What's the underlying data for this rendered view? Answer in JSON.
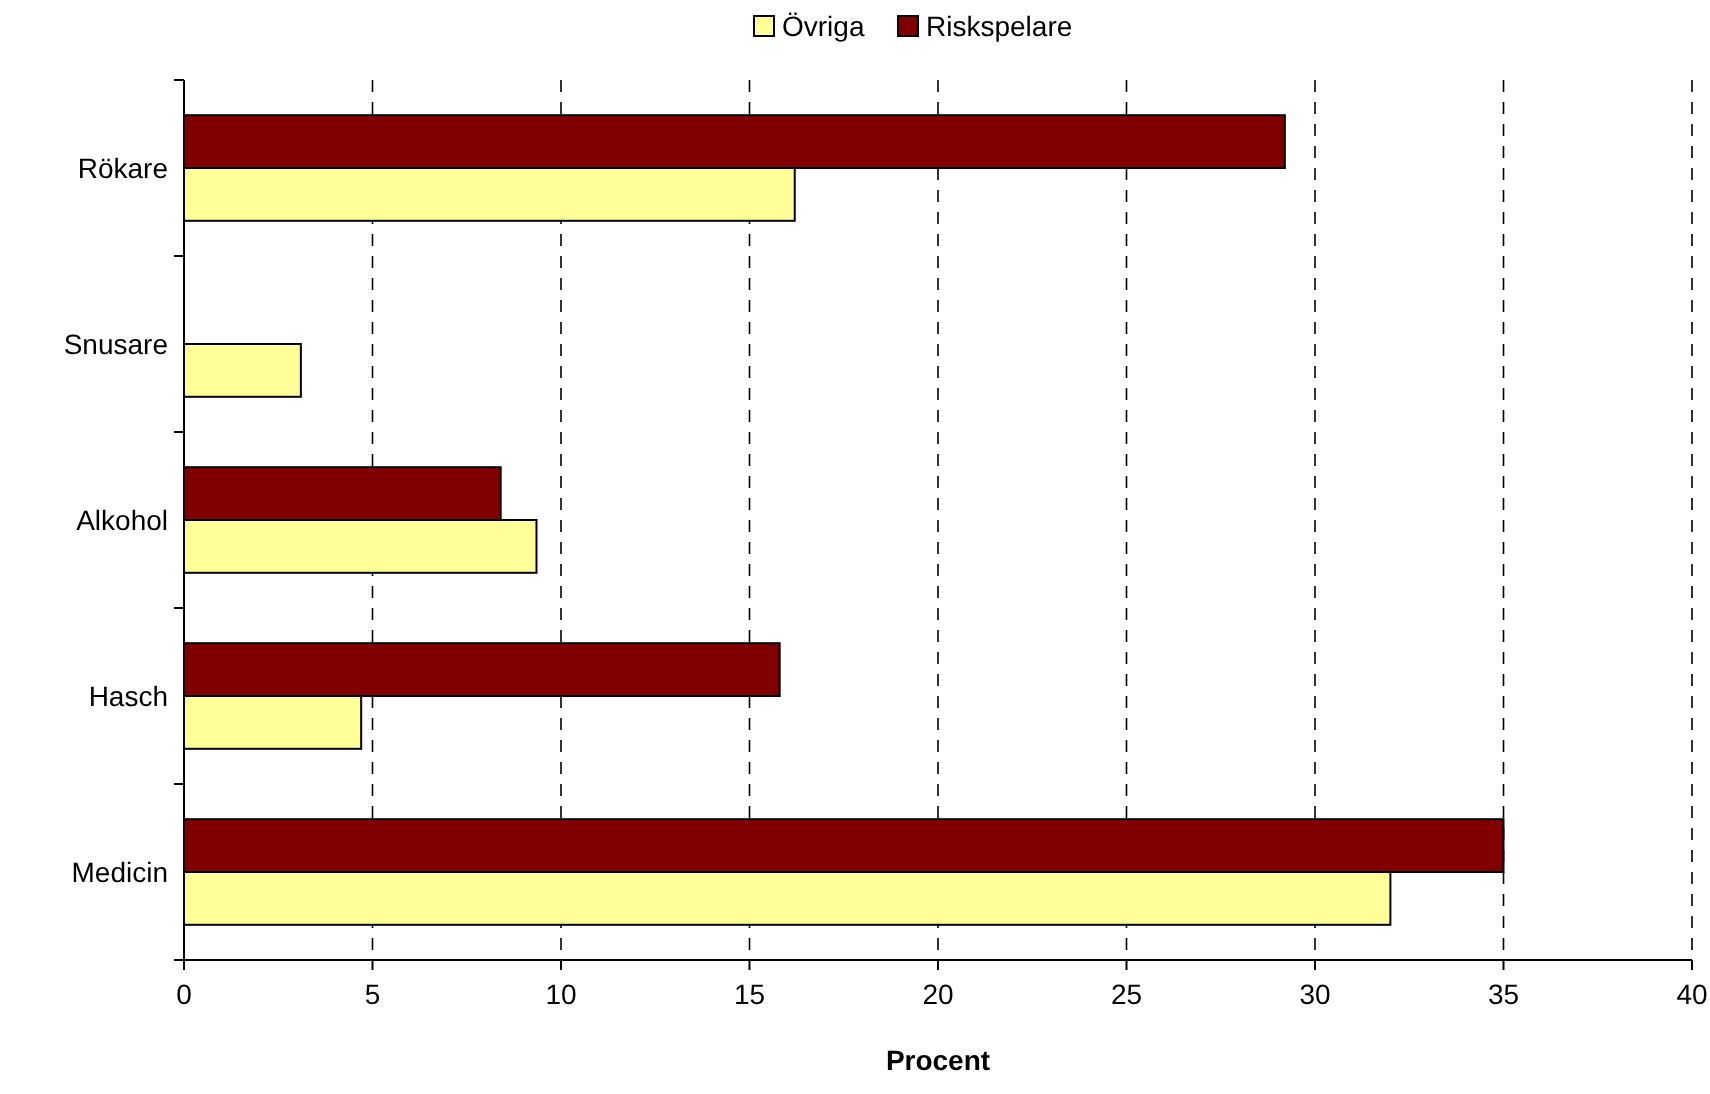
{
  "chart_data": {
    "type": "bar",
    "orientation": "horizontal",
    "xlabel": "Procent",
    "categories": [
      "Rökare",
      "Snusare",
      "Alkohol",
      "Hasch",
      "Medicin"
    ],
    "series": [
      {
        "name": "Övriga",
        "color": "#ffff99",
        "values": [
          16.2,
          3.1,
          9.35,
          4.7,
          32.0
        ]
      },
      {
        "name": "Riskspelare",
        "color": "#800000",
        "values": [
          29.2,
          null,
          8.4,
          15.8,
          35.0
        ]
      }
    ],
    "xlim": [
      0,
      40
    ],
    "xticks": [
      0,
      5,
      10,
      15,
      20,
      25,
      30,
      35,
      40
    ],
    "grid": "x",
    "legend": "top"
  }
}
